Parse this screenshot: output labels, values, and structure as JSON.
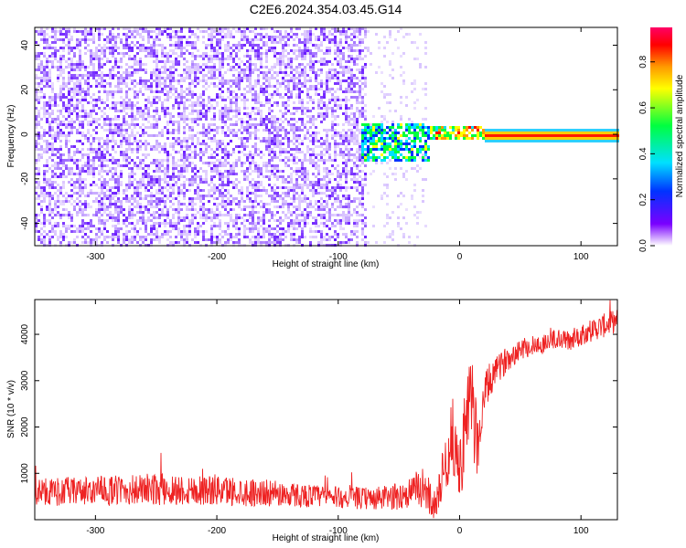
{
  "title": "C2E6.2024.354.03.45.G14",
  "chart_data": [
    {
      "type": "heatmap",
      "xlabel": "Height of straight line (km)",
      "ylabel": "Frequency (Hz)",
      "xlim": [
        -350,
        130
      ],
      "ylim": [
        -50,
        48
      ],
      "xticks": [
        -300,
        -200,
        -100,
        0,
        100
      ],
      "yticks": [
        -40,
        -20,
        0,
        20,
        40
      ],
      "grid": false,
      "colorbar": {
        "label": "Normalized spectral amplitude",
        "range": [
          0,
          0.95
        ],
        "ticks": [
          0,
          0.2,
          0.4,
          0.6,
          0.8
        ],
        "tick_labels": [
          "0.0",
          "0.2",
          "0.4",
          "0.6",
          "0.8"
        ],
        "colormap": [
          "#ffffff",
          "#7a00ff",
          "#0033ff",
          "#00e0ff",
          "#00ff40",
          "#ffff00",
          "#ff9900",
          "#ff0000",
          "#ff0066"
        ]
      },
      "regions": [
        {
          "x": [
            -350,
            -78
          ],
          "freq": [
            -50,
            48
          ],
          "amplitude": "noise 0.05-0.2"
        },
        {
          "x": [
            -78,
            -28
          ],
          "freq": [
            -50,
            48
          ],
          "amplitude": "sparse faint noise"
        },
        {
          "x": [
            -80,
            -25
          ],
          "freq": [
            -10,
            5
          ],
          "amplitude": "0.3-0.5"
        },
        {
          "x": [
            -25,
            20
          ],
          "freq": [
            -1,
            3
          ],
          "amplitude": "0.5-0.8"
        },
        {
          "x": [
            20,
            130
          ],
          "freq": [
            0,
            0
          ],
          "amplitude": "0.9"
        }
      ]
    },
    {
      "type": "line",
      "xlabel": "Height of straight line (km)",
      "ylabel": "SNR (10 * v/v)",
      "xlim": [
        -350,
        130
      ],
      "ylim": [
        0,
        4750
      ],
      "xticks": [
        -300,
        -200,
        -100,
        0,
        100
      ],
      "yticks": [
        1000,
        2000,
        3000,
        4000
      ],
      "grid": false,
      "color": "#ee2222",
      "series": [
        {
          "x": [
            -350,
            -300,
            -250,
            -200,
            -150,
            -100,
            -70,
            -50,
            -40,
            -30,
            -25,
            -20,
            -10,
            -5,
            0,
            5,
            10,
            15,
            20,
            25,
            30,
            40,
            50,
            60,
            70,
            80,
            90,
            100,
            110,
            120,
            130
          ],
          "y": [
            600,
            620,
            650,
            640,
            560,
            480,
            450,
            500,
            600,
            700,
            500,
            300,
            1400,
            1800,
            1000,
            2000,
            2500,
            1600,
            2600,
            3000,
            3200,
            3500,
            3700,
            3750,
            3800,
            3900,
            3850,
            4000,
            4100,
            4200,
            4300
          ],
          "noise_amplitude": [
            300,
            320,
            350,
            340,
            280,
            230,
            250,
            300,
            350,
            450,
            400,
            300,
            700,
            900,
            700,
            900,
            1100,
            700,
            500,
            400,
            300,
            280,
            250,
            230,
            220,
            230,
            230,
            240,
            250,
            260,
            250
          ]
        }
      ]
    }
  ]
}
